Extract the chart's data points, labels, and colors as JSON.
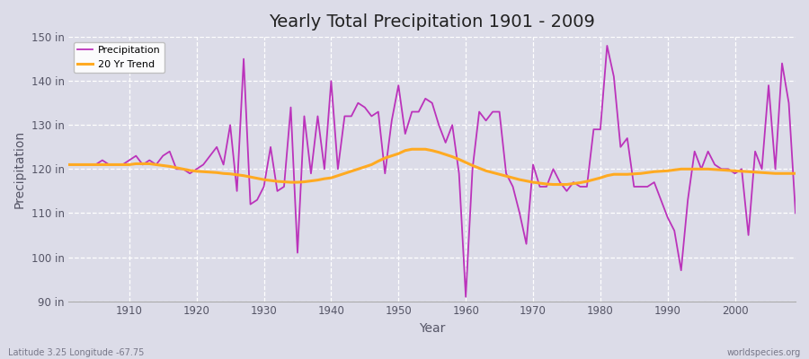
{
  "title": "Yearly Total Precipitation 1901 - 2009",
  "xlabel": "Year",
  "ylabel": "Precipitation",
  "lat_lon_label": "Latitude 3.25 Longitude -67.75",
  "website_label": "worldspecies.org",
  "ylim": [
    90,
    150
  ],
  "yticks": [
    90,
    100,
    110,
    120,
    130,
    140,
    150
  ],
  "ytick_labels": [
    "90 in",
    "100 in",
    "110 in",
    "120 in",
    "130 in",
    "140 in",
    "150 in"
  ],
  "xticks": [
    1910,
    1920,
    1930,
    1940,
    1950,
    1960,
    1970,
    1980,
    1990,
    2000
  ],
  "fig_bg_color": "#dcdce8",
  "plot_bg_color": "#dcdce8",
  "precip_color": "#bb33bb",
  "trend_color": "#ffaa22",
  "precip_linewidth": 1.3,
  "trend_linewidth": 2.2,
  "years": [
    1901,
    1902,
    1903,
    1904,
    1905,
    1906,
    1907,
    1908,
    1909,
    1910,
    1911,
    1912,
    1913,
    1914,
    1915,
    1916,
    1917,
    1918,
    1919,
    1920,
    1921,
    1922,
    1923,
    1924,
    1925,
    1926,
    1927,
    1928,
    1929,
    1930,
    1931,
    1932,
    1933,
    1934,
    1935,
    1936,
    1937,
    1938,
    1939,
    1940,
    1941,
    1942,
    1943,
    1944,
    1945,
    1946,
    1947,
    1948,
    1949,
    1950,
    1951,
    1952,
    1953,
    1954,
    1955,
    1956,
    1957,
    1958,
    1959,
    1960,
    1961,
    1962,
    1963,
    1964,
    1965,
    1966,
    1967,
    1968,
    1969,
    1970,
    1971,
    1972,
    1973,
    1974,
    1975,
    1976,
    1977,
    1978,
    1979,
    1980,
    1981,
    1982,
    1983,
    1984,
    1985,
    1986,
    1987,
    1988,
    1989,
    1990,
    1991,
    1992,
    1993,
    1994,
    1995,
    1996,
    1997,
    1998,
    1999,
    2000,
    2001,
    2002,
    2003,
    2004,
    2005,
    2006,
    2007,
    2008,
    2009
  ],
  "precip": [
    121,
    121,
    121,
    121,
    121,
    122,
    121,
    121,
    121,
    122,
    123,
    121,
    122,
    121,
    123,
    124,
    120,
    120,
    119,
    120,
    121,
    123,
    125,
    121,
    130,
    115,
    145,
    112,
    113,
    116,
    125,
    115,
    116,
    134,
    101,
    132,
    119,
    132,
    120,
    140,
    120,
    132,
    132,
    135,
    134,
    132,
    133,
    119,
    131,
    139,
    128,
    133,
    133,
    136,
    135,
    130,
    126,
    130,
    119,
    91,
    120,
    133,
    131,
    133,
    133,
    119,
    116,
    110,
    103,
    121,
    116,
    116,
    120,
    117,
    115,
    117,
    116,
    116,
    129,
    129,
    148,
    141,
    125,
    127,
    116,
    116,
    116,
    117,
    113,
    109,
    106,
    97,
    113,
    124,
    120,
    124,
    121,
    120,
    120,
    119,
    120,
    105,
    124,
    120,
    139,
    120,
    144,
    135,
    110
  ],
  "trend": [
    121.0,
    121.0,
    121.0,
    121.0,
    121.0,
    121.0,
    121.0,
    121.0,
    121.0,
    121.0,
    121.2,
    121.2,
    121.2,
    121.0,
    120.8,
    120.6,
    120.3,
    120.0,
    119.7,
    119.5,
    119.4,
    119.3,
    119.2,
    119.0,
    118.9,
    118.7,
    118.5,
    118.2,
    117.9,
    117.6,
    117.4,
    117.2,
    117.1,
    117.0,
    117.0,
    117.1,
    117.3,
    117.5,
    117.8,
    118.0,
    118.5,
    119.0,
    119.5,
    120.0,
    120.5,
    121.0,
    121.8,
    122.5,
    123.0,
    123.5,
    124.2,
    124.5,
    124.5,
    124.5,
    124.2,
    123.8,
    123.3,
    122.8,
    122.2,
    121.5,
    120.8,
    120.2,
    119.6,
    119.2,
    118.8,
    118.4,
    118.0,
    117.6,
    117.3,
    117.0,
    116.8,
    116.6,
    116.5,
    116.5,
    116.5,
    116.7,
    116.9,
    117.2,
    117.6,
    118.0,
    118.5,
    118.8,
    118.8,
    118.8,
    118.9,
    119.0,
    119.2,
    119.4,
    119.5,
    119.6,
    119.8,
    120.0,
    120.0,
    120.0,
    120.0,
    120.0,
    119.9,
    119.8,
    119.7,
    119.6,
    119.5,
    119.4,
    119.3,
    119.2,
    119.1,
    119.0,
    119.0,
    119.0,
    119.0
  ]
}
